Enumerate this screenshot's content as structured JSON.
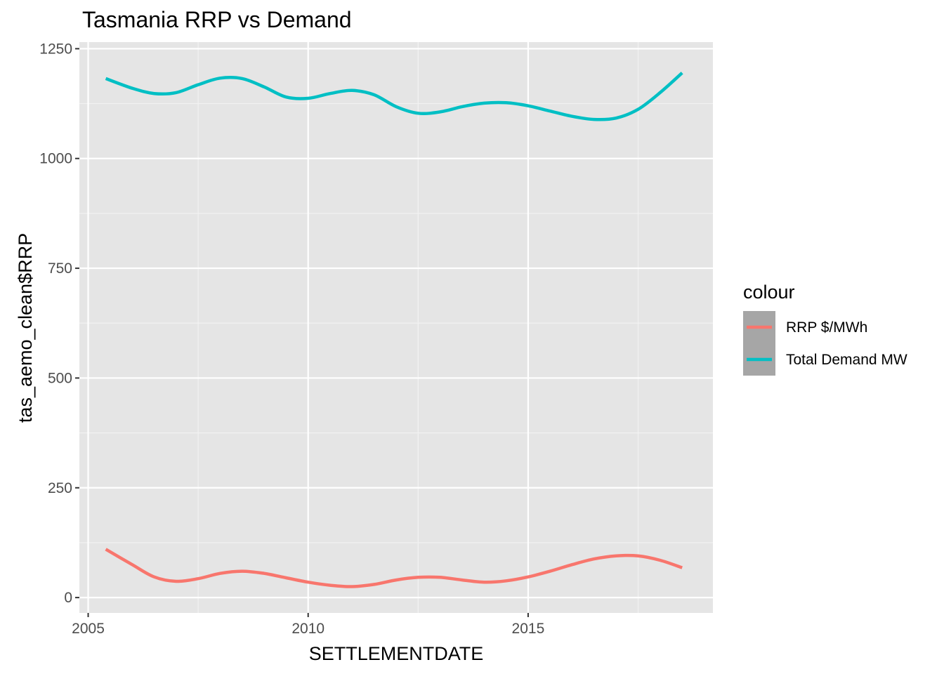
{
  "chart_data": {
    "type": "line",
    "title": "Tasmania RRP vs Demand",
    "xlabel": "SETTLEMENTDATE",
    "ylabel": "tas_aemo_clean$RRP",
    "xlim": [
      2004.8,
      2019.2
    ],
    "ylim": [
      -35,
      1265
    ],
    "x_ticks": [
      2005,
      2010,
      2015
    ],
    "y_ticks": [
      0,
      250,
      500,
      750,
      1000,
      1250
    ],
    "grid": true,
    "legend": {
      "title": "colour",
      "placement": "right"
    },
    "series": [
      {
        "name": "RRP $/MWh",
        "color": "#F8766D",
        "x": [
          2005.4,
          2006.0,
          2006.5,
          2007.0,
          2007.5,
          2008.0,
          2008.5,
          2009.0,
          2009.5,
          2010.0,
          2010.5,
          2011.0,
          2011.5,
          2012.0,
          2012.5,
          2013.0,
          2013.5,
          2014.0,
          2014.5,
          2015.0,
          2015.5,
          2016.0,
          2016.5,
          2017.0,
          2017.5,
          2018.0,
          2018.5
        ],
        "y": [
          110,
          75,
          47,
          37,
          43,
          55,
          60,
          55,
          45,
          35,
          28,
          25,
          30,
          40,
          46,
          46,
          40,
          35,
          38,
          47,
          60,
          75,
          88,
          95,
          95,
          85,
          68
        ]
      },
      {
        "name": "Total Demand MW",
        "color": "#00BFC4",
        "x": [
          2005.4,
          2006.0,
          2006.5,
          2007.0,
          2007.5,
          2008.0,
          2008.5,
          2009.0,
          2009.5,
          2010.0,
          2010.5,
          2011.0,
          2011.5,
          2012.0,
          2012.5,
          2013.0,
          2013.5,
          2014.0,
          2014.5,
          2015.0,
          2015.5,
          2016.0,
          2016.5,
          2017.0,
          2017.5,
          2018.0,
          2018.5
        ],
        "y": [
          1182,
          1160,
          1148,
          1150,
          1168,
          1183,
          1182,
          1163,
          1140,
          1137,
          1148,
          1155,
          1145,
          1118,
          1103,
          1106,
          1118,
          1126,
          1127,
          1120,
          1108,
          1096,
          1089,
          1092,
          1112,
          1150,
          1195
        ]
      }
    ]
  }
}
